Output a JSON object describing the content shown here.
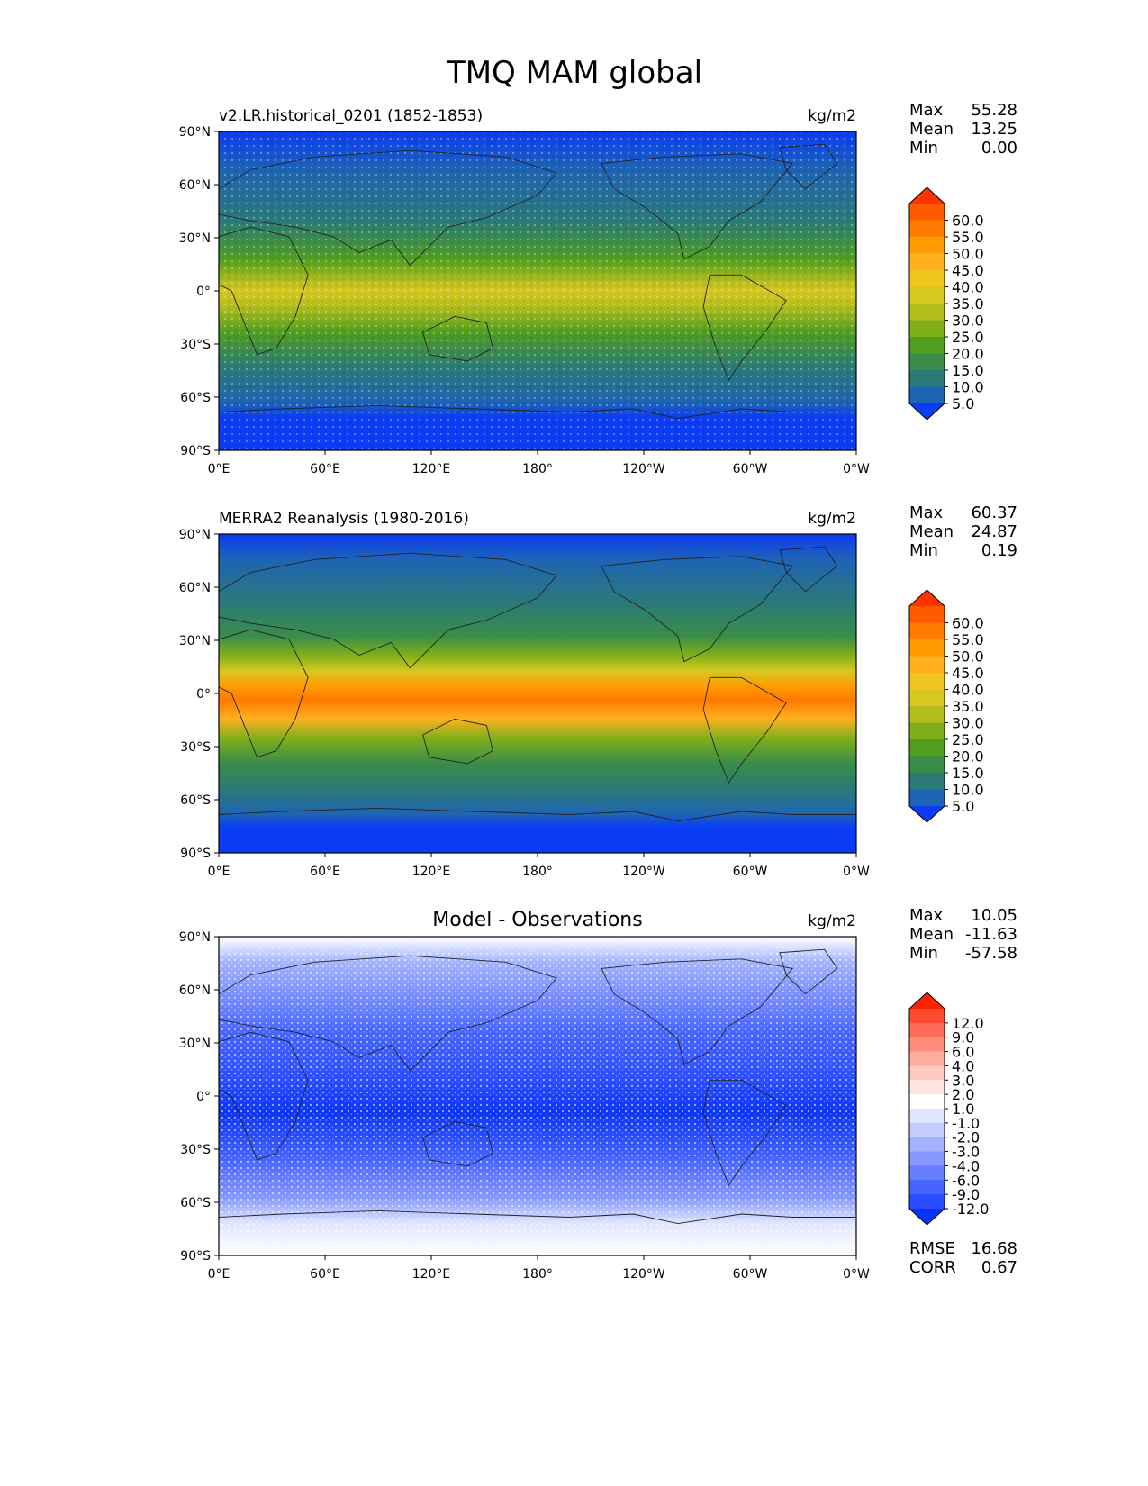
{
  "figure": {
    "title": "TMQ MAM global"
  },
  "axes": {
    "lat_ticks": [
      "90°N",
      "60°N",
      "30°N",
      "0°",
      "30°S",
      "60°S",
      "90°S"
    ],
    "lon_ticks": [
      "0°E",
      "60°E",
      "120°E",
      "180°",
      "120°W",
      "60°W",
      "0°W"
    ]
  },
  "panels": [
    {
      "id": "model",
      "left_title": "v2.LR.historical_0201 (1852-1853)",
      "center_title": "",
      "units": "kg/m2",
      "stats": [
        {
          "label": "Max",
          "value": "55.28"
        },
        {
          "label": "Mean",
          "value": "13.25"
        },
        {
          "label": "Min",
          "value": "0.00"
        }
      ],
      "colorbar_labels": [
        "60.0",
        "55.0",
        "50.0",
        "45.0",
        "40.0",
        "35.0",
        "30.0",
        "25.0",
        "20.0",
        "15.0",
        "10.0",
        "5.0"
      ],
      "colorbar_colors": [
        "#ff3300",
        "#ff5a00",
        "#ff7a00",
        "#ff9a00",
        "#ffb020",
        "#f2c41e",
        "#d8c71f",
        "#b3bd1c",
        "#7fb01a",
        "#4f9e20",
        "#3a8c4a",
        "#2b7a78",
        "#1e64b4",
        "#0a3cf5"
      ],
      "extra_stats": []
    },
    {
      "id": "obs",
      "left_title": "MERRA2 Reanalysis (1980-2016)",
      "center_title": "",
      "units": "kg/m2",
      "stats": [
        {
          "label": "Max",
          "value": "60.37"
        },
        {
          "label": "Mean",
          "value": "24.87"
        },
        {
          "label": "Min",
          "value": "0.19"
        }
      ],
      "colorbar_labels": [
        "60.0",
        "55.0",
        "50.0",
        "45.0",
        "40.0",
        "35.0",
        "30.0",
        "25.0",
        "20.0",
        "15.0",
        "10.0",
        "5.0"
      ],
      "colorbar_colors": [
        "#ff3300",
        "#ff5a00",
        "#ff7a00",
        "#ff9a00",
        "#ffb020",
        "#f2c41e",
        "#d8c71f",
        "#b3bd1c",
        "#7fb01a",
        "#4f9e20",
        "#3a8c4a",
        "#2b7a78",
        "#1e64b4",
        "#0a3cf5"
      ],
      "extra_stats": []
    },
    {
      "id": "diff",
      "left_title": "",
      "center_title": "Model - Observations",
      "units": "kg/m2",
      "stats": [
        {
          "label": "Max",
          "value": "10.05"
        },
        {
          "label": "Mean",
          "value": "-11.63"
        },
        {
          "label": "Min",
          "value": "-57.58"
        }
      ],
      "colorbar_labels": [
        "12.0",
        "9.0",
        "6.0",
        "4.0",
        "3.0",
        "2.0",
        "1.0",
        "-1.0",
        "-2.0",
        "-3.0",
        "-4.0",
        "-6.0",
        "-9.0",
        "-12.0"
      ],
      "colorbar_colors": [
        "#ff2200",
        "#ff4a2e",
        "#ff6b55",
        "#ff8c7a",
        "#ffac9e",
        "#ffc9bf",
        "#ffe4de",
        "#ffffff",
        "#e0e6ff",
        "#c2ccff",
        "#a3b2ff",
        "#8598ff",
        "#667eff",
        "#4664ff",
        "#2a4cff",
        "#0a34f5"
      ],
      "extra_stats": [
        {
          "label": "RMSE",
          "value": "16.68"
        },
        {
          "label": "CORR",
          "value": "0.67"
        }
      ]
    }
  ]
}
